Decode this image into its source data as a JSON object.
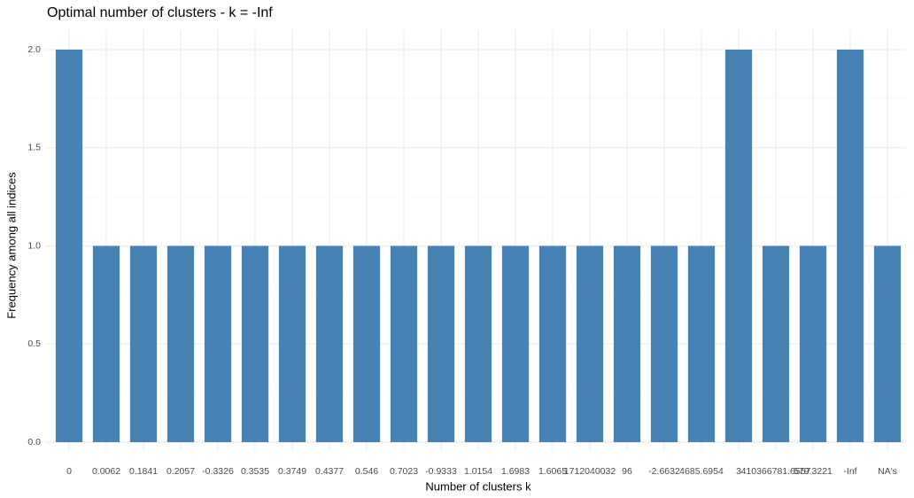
{
  "chart_data": {
    "type": "bar",
    "title": "Optimal number of clusters - k = -Inf",
    "x_label": "Number of clusters k",
    "y_label": "Frequency among all indices",
    "categories": [
      "0",
      "0.0062",
      "0.1841",
      "0.2057",
      "-0.3326",
      "0.3535",
      "0.3749",
      "0.4377",
      "0.546",
      "0.7023",
      "-0.9333",
      "1.0154",
      "1.6983",
      "1.6065",
      "1712040032",
      "96",
      "-2.6632",
      "4685.6954",
      "3",
      "410366781.6557",
      "579.3221",
      "-Inf",
      "NA's"
    ],
    "values": [
      2,
      1,
      1,
      1,
      1,
      1,
      1,
      1,
      1,
      1,
      1,
      1,
      1,
      1,
      1,
      1,
      1,
      1,
      2,
      1,
      1,
      2,
      1
    ],
    "color": "#4682b4",
    "ylim": [
      0,
      2
    ],
    "yticks": [
      {
        "value": 0,
        "label": "0.0"
      },
      0.5,
      {
        "value": 1,
        "label": "1.0"
      },
      1.5,
      {
        "value": 2,
        "label": "2.0"
      }
    ],
    "grid": true
  }
}
